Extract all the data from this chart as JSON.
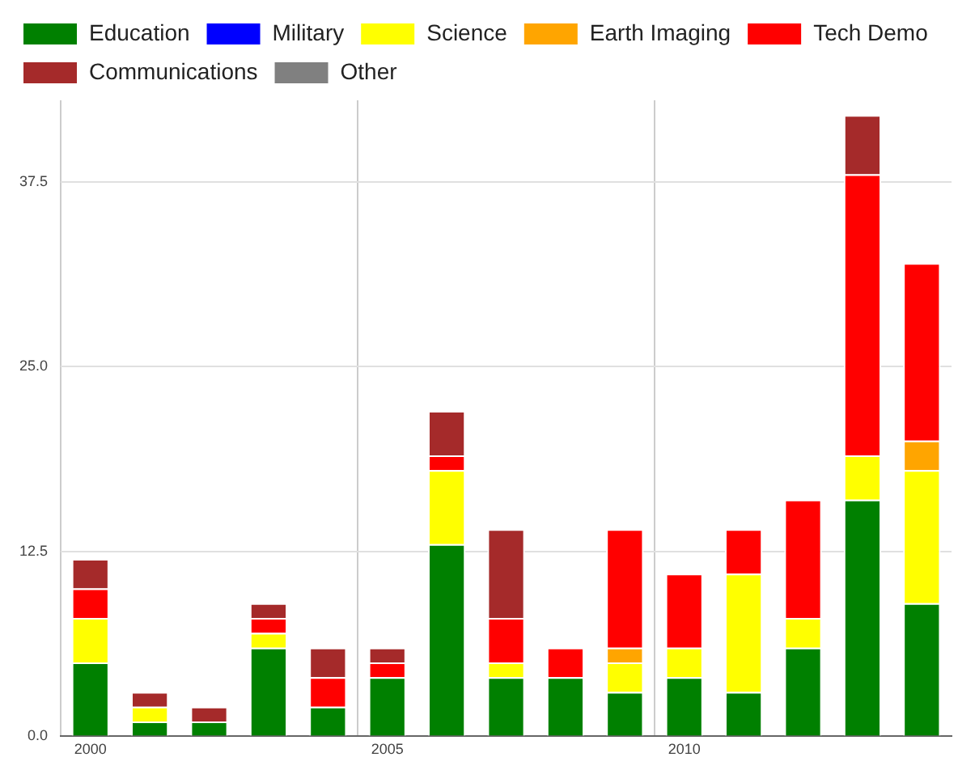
{
  "chart_data": {
    "type": "bar",
    "stacked": true,
    "legend": "top left",
    "grid": true,
    "categories": [
      "2000",
      null,
      null,
      null,
      null,
      "2005",
      null,
      null,
      null,
      null,
      "2010",
      null,
      null,
      null,
      null
    ],
    "ylim": [
      0,
      43
    ],
    "yticks": [
      {
        "value": 0,
        "label": "0.0"
      },
      12.5,
      {
        "value": 25,
        "label": "25.0"
      },
      37.5
    ],
    "series": [
      {
        "name": "Education",
        "color": "#008000",
        "values": [
          5,
          1,
          1,
          6,
          2,
          4,
          13,
          4,
          4,
          3,
          4,
          3,
          6,
          16,
          9
        ]
      },
      {
        "name": "Military",
        "color": "#0000ff",
        "values": [
          0,
          0,
          0,
          0,
          0,
          0,
          0,
          0,
          0,
          0,
          0,
          0,
          0,
          0,
          0
        ]
      },
      {
        "name": "Science",
        "color": "#ffff00",
        "values": [
          3,
          1,
          0,
          1,
          0,
          0,
          5,
          1,
          0,
          2,
          2,
          8,
          2,
          3,
          9
        ]
      },
      {
        "name": "Earth Imaging",
        "color": "#ffa500",
        "values": [
          0,
          0,
          0,
          0,
          0,
          0,
          0,
          0,
          0,
          1,
          0,
          0,
          0,
          0,
          2
        ]
      },
      {
        "name": "Tech Demo",
        "color": "#ff0000",
        "values": [
          2,
          0,
          0,
          1,
          2,
          1,
          1,
          3,
          2,
          8,
          5,
          3,
          8,
          19,
          12
        ]
      },
      {
        "name": "Communications",
        "color": "#a52a2a",
        "values": [
          2,
          1,
          1,
          1,
          2,
          1,
          3,
          6,
          0,
          0,
          0,
          0,
          0,
          4,
          0
        ]
      },
      {
        "name": "Other",
        "color": "#808080",
        "values": [
          0,
          0,
          0,
          0,
          0,
          0,
          0,
          0,
          0,
          0,
          0,
          0,
          0,
          0,
          0
        ]
      }
    ]
  }
}
